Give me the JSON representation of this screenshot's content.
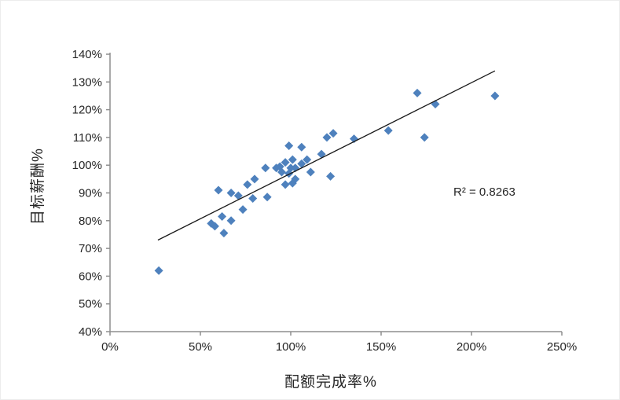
{
  "chart_data": {
    "type": "scatter",
    "title": "",
    "xlabel": "配额完成率%",
    "ylabel": "目标薪酬%",
    "xlim": [
      0,
      250
    ],
    "ylim": [
      40,
      140
    ],
    "grid": false,
    "legend_position": "none",
    "x_ticks": [
      {
        "value": 0,
        "label": "0%"
      },
      {
        "value": 50,
        "label": "50%"
      },
      {
        "value": 100,
        "label": "100%"
      },
      {
        "value": 150,
        "label": "150%"
      },
      {
        "value": 200,
        "label": "200%"
      },
      {
        "value": 250,
        "label": "250%"
      }
    ],
    "y_ticks": [
      {
        "value": 40,
        "label": "40%"
      },
      {
        "value": 50,
        "label": "50%"
      },
      {
        "value": 60,
        "label": "60%"
      },
      {
        "value": 70,
        "label": "70%"
      },
      {
        "value": 80,
        "label": "80%"
      },
      {
        "value": 90,
        "label": "90%"
      },
      {
        "value": 100,
        "label": "100%"
      },
      {
        "value": 110,
        "label": "110%"
      },
      {
        "value": 120,
        "label": "120%"
      },
      {
        "value": 130,
        "label": "130%"
      },
      {
        "value": 140,
        "label": "140%"
      }
    ],
    "series": [
      {
        "marker": "diamond",
        "color": "#4E81BD",
        "points": [
          [
            27,
            62
          ],
          [
            56,
            79
          ],
          [
            58,
            78
          ],
          [
            60,
            91
          ],
          [
            62,
            81.5
          ],
          [
            63,
            75.5
          ],
          [
            67,
            90
          ],
          [
            67,
            80
          ],
          [
            71,
            89
          ],
          [
            73.5,
            84
          ],
          [
            76,
            93
          ],
          [
            79,
            88
          ],
          [
            80,
            95
          ],
          [
            86,
            99
          ],
          [
            87,
            88.5
          ],
          [
            92,
            99
          ],
          [
            94,
            99.5
          ],
          [
            95,
            97.5
          ],
          [
            97,
            93
          ],
          [
            97,
            101
          ],
          [
            99,
            107
          ],
          [
            99,
            97
          ],
          [
            100,
            99
          ],
          [
            101,
            93.5
          ],
          [
            101,
            102
          ],
          [
            102.5,
            99
          ],
          [
            102.5,
            95
          ],
          [
            106,
            106.5
          ],
          [
            106,
            100.5
          ],
          [
            109,
            102
          ],
          [
            111,
            97.5
          ],
          [
            117,
            104
          ],
          [
            120,
            110
          ],
          [
            122,
            96
          ],
          [
            123.5,
            111.5
          ],
          [
            135,
            109.5
          ],
          [
            154,
            112.5
          ],
          [
            170,
            126
          ],
          [
            174,
            110
          ],
          [
            180,
            122
          ],
          [
            213,
            125
          ]
        ]
      }
    ],
    "trendline": {
      "type": "linear",
      "x_start": 26.5,
      "y_start": 73,
      "x_end": 213,
      "y_end": 134,
      "r_squared": 0.8263
    },
    "annotation": {
      "text": "R² = 0.8263",
      "x": 190,
      "y": 90
    }
  },
  "colors": {
    "marker": "#4E81BD",
    "axis": "#8E8E8E",
    "tick_text": "#262626",
    "trendline": "#1A1A1A",
    "background": "#FFFFFF"
  }
}
